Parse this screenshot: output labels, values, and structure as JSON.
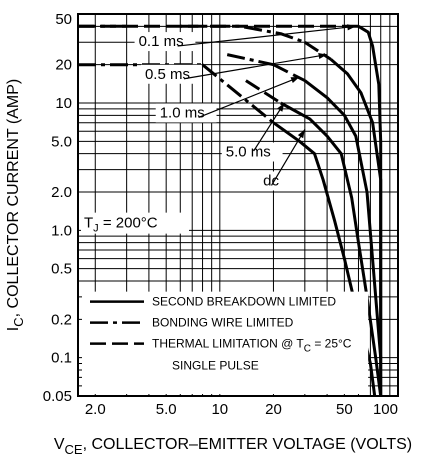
{
  "chart_data": {
    "type": "line",
    "xlabel": {
      "main": "V",
      "sub": "CE",
      "rest": ", COLLECTOR–EMITTER VOLTAGE (VOLTS)"
    },
    "ylabel": {
      "main": "I",
      "sub": "C",
      "rest": ", COLLECTOR CURRENT (AMP)"
    },
    "x_scale": "log",
    "y_scale": "log",
    "xlim": [
      1.6,
      100
    ],
    "ylim": [
      0.05,
      50
    ],
    "grid": true,
    "x_ticks": [
      {
        "value": 2,
        "label": "2.0"
      },
      {
        "value": 5,
        "label": "5.0"
      },
      {
        "value": 10,
        "label": "10"
      },
      {
        "value": 20,
        "label": "20"
      },
      {
        "value": 50,
        "label": "50"
      },
      {
        "value": 100,
        "label": "100"
      }
    ],
    "y_ticks": [
      {
        "value": 0.05,
        "label": "0.05"
      },
      {
        "value": 0.1,
        "label": "0.1"
      },
      {
        "value": 0.2,
        "label": "0.2"
      },
      {
        "value": 0.5,
        "label": "0.5"
      },
      {
        "value": 1,
        "label": "1.0"
      },
      {
        "value": 2,
        "label": "2.0"
      },
      {
        "value": 5,
        "label": "5.0"
      },
      {
        "value": 10,
        "label": "10"
      },
      {
        "value": 20,
        "label": "20"
      },
      {
        "value": 50,
        "label": "50"
      }
    ],
    "series": [
      {
        "name": "0.1 ms",
        "style": "solid",
        "x": [
          60,
          68,
          72,
          78,
          80,
          80
        ],
        "y": [
          40,
          36,
          28,
          14,
          5,
          0.05
        ]
      },
      {
        "name": "0.1 ms",
        "style": "long-dash",
        "x": [
          1.6,
          60
        ],
        "y": [
          40,
          40
        ]
      },
      {
        "name": "0.5 ms",
        "style": "solid",
        "x": [
          42,
          52,
          62,
          72,
          80,
          80
        ],
        "y": [
          22,
          17,
          12,
          7,
          2.5,
          0.05
        ]
      },
      {
        "name": "0.5 ms",
        "style": "long-dash",
        "x": [
          30,
          42
        ],
        "y": [
          30,
          22
        ]
      },
      {
        "name": "1.0 ms",
        "style": "solid",
        "x": [
          30,
          40,
          50,
          58,
          67,
          75,
          80
        ],
        "y": [
          15,
          11,
          8,
          5.5,
          2,
          0.3,
          0.1
        ]
      },
      {
        "name": "1.0 ms",
        "style": "long-dash",
        "x": [
          20,
          30
        ],
        "y": [
          20,
          15
        ]
      },
      {
        "name": "5.0 ms",
        "style": "solid",
        "x": [
          22,
          32,
          40,
          48,
          55,
          60,
          67,
          75,
          80
        ],
        "y": [
          10,
          7.5,
          5.5,
          4,
          1.8,
          0.8,
          0.3,
          0.1,
          0.05
        ]
      },
      {
        "name": "5.0 ms",
        "style": "long-dash",
        "x": [
          14,
          22
        ],
        "y": [
          15,
          10
        ]
      },
      {
        "name": "dc",
        "style": "solid",
        "x": [
          20,
          28,
          34,
          38,
          44,
          50,
          58,
          64,
          70,
          74
        ],
        "y": [
          7,
          5,
          4,
          2.5,
          1.2,
          0.6,
          0.25,
          0.15,
          0.09,
          0.05
        ]
      },
      {
        "name": "dc",
        "style": "dash-dot",
        "x": [
          8,
          20
        ],
        "y": [
          20,
          7
        ]
      },
      {
        "name": "bonding-wire-0.5",
        "style": "dash-dot",
        "x": [
          6,
          13,
          22,
          30
        ],
        "y": [
          40,
          40,
          35,
          30
        ]
      },
      {
        "name": "bonding-wire-1.0",
        "style": "dash-dot",
        "x": [
          1.6,
          8
        ],
        "y": [
          20,
          20
        ]
      },
      {
        "name": "bonding-wire-1.0b",
        "style": "dash-dot",
        "x": [
          11,
          20
        ],
        "y": [
          24,
          20
        ]
      },
      {
        "name": "bonding-wire-top",
        "style": "dash-dot",
        "x": [
          1.6,
          3
        ],
        "y": [
          40,
          40
        ]
      }
    ],
    "annotations": [
      {
        "text": "0.1 ms",
        "x": 3.5,
        "y": 28
      },
      {
        "text": "0.5 ms",
        "x": 3.8,
        "y": 15.5
      },
      {
        "text": "1.0 ms",
        "x": 4.6,
        "y": 7.7
      },
      {
        "text": "5.0 ms",
        "x": 10.8,
        "y": 3.8
      },
      {
        "text": "dc",
        "x": 17.5,
        "y": 2.25
      }
    ],
    "condition": {
      "text": "T",
      "sub": "J",
      "rest": " = 200°C"
    },
    "legend": [
      {
        "style": "solid",
        "text": "SECOND BREAKDOWN LIMITED"
      },
      {
        "style": "dash-dot",
        "text": "BONDING WIRE LIMITED"
      },
      {
        "style": "long-dash",
        "text": "THERMAL LIMITATION @ T",
        "sub": "C",
        "rest": " = 25°C"
      },
      {
        "style": "none",
        "text": "SINGLE PULSE"
      }
    ],
    "legend_position": "bottom-left"
  }
}
